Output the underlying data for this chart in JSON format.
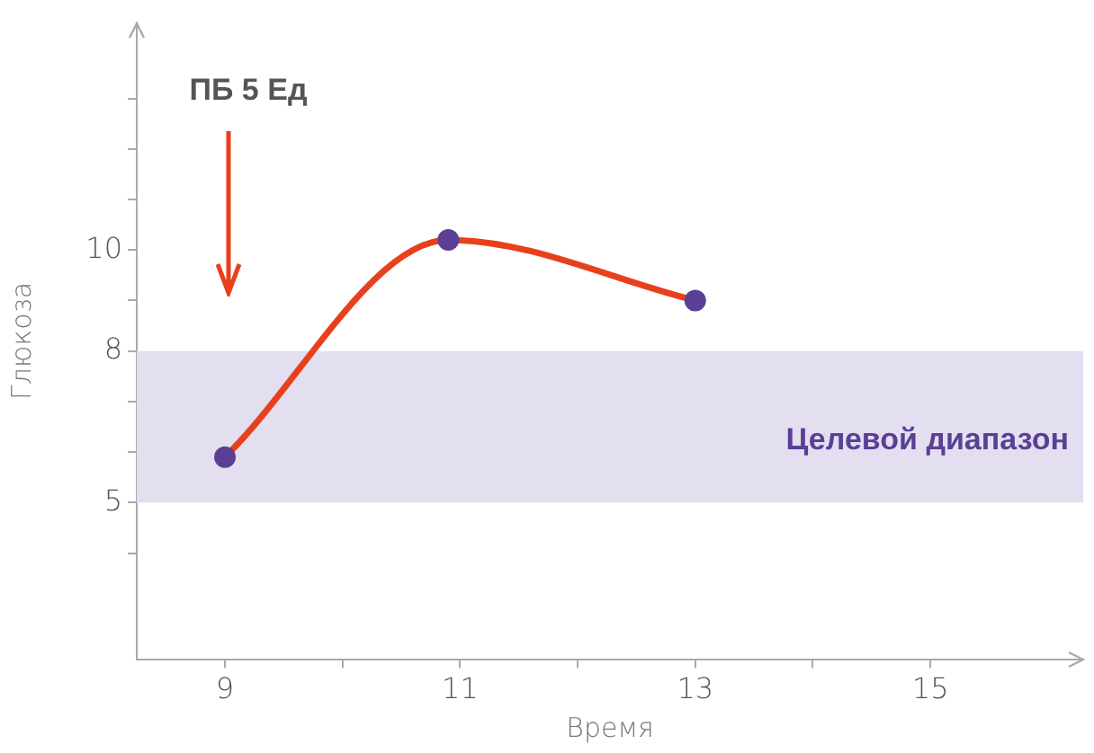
{
  "chart_data": {
    "type": "line",
    "xlabel": "Время",
    "ylabel": "Глюкоза",
    "x": [
      9,
      10.9,
      13
    ],
    "series": [
      {
        "color": "#e8401c",
        "colors": [
          "#5b3f95",
          "#5b3f95",
          "#5b3f95"
        ],
        "values": [
          5.9,
          10.2,
          9.0
        ]
      }
    ],
    "marker": "circle",
    "xlim": [
      8.25,
      16.3
    ],
    "xticks": [
      9,
      {
        "value": 10,
        "label": null
      },
      11,
      {
        "value": 12,
        "label": null
      },
      13,
      {
        "value": 14,
        "label": null
      },
      15
    ],
    "ylim": [
      1.9,
      14.5
    ],
    "yticks": [
      {
        "value": 4,
        "label": null
      },
      5,
      {
        "value": 6,
        "label": null
      },
      {
        "value": 7,
        "label": null
      },
      8,
      {
        "value": 9,
        "label": null
      },
      10,
      {
        "value": 11,
        "label": null
      },
      {
        "value": 12,
        "label": null
      },
      {
        "value": 13,
        "label": null
      }
    ],
    "bands": [
      {
        "axis": "y",
        "from": 5,
        "to": 8,
        "label": "Целевой диапазон",
        "color": "#e3dff0"
      }
    ],
    "annotations": [
      "ПБ 5 Ед"
    ]
  }
}
